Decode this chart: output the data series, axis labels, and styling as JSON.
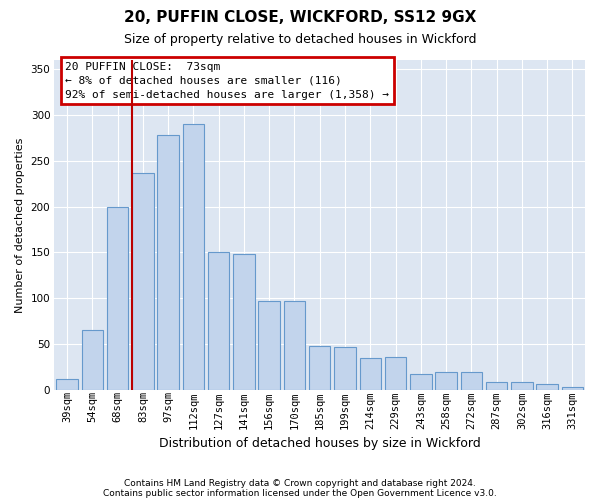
{
  "title1": "20, PUFFIN CLOSE, WICKFORD, SS12 9GX",
  "title2": "Size of property relative to detached houses in Wickford",
  "xlabel": "Distribution of detached houses by size in Wickford",
  "ylabel": "Number of detached properties",
  "categories": [
    "39sqm",
    "54sqm",
    "68sqm",
    "83sqm",
    "97sqm",
    "112sqm",
    "127sqm",
    "141sqm",
    "156sqm",
    "170sqm",
    "185sqm",
    "199sqm",
    "214sqm",
    "229sqm",
    "243sqm",
    "258sqm",
    "272sqm",
    "287sqm",
    "302sqm",
    "316sqm",
    "331sqm"
  ],
  "values": [
    12,
    65,
    200,
    237,
    278,
    290,
    150,
    148,
    97,
    97,
    48,
    47,
    35,
    36,
    17,
    19,
    19,
    9,
    9,
    6,
    3
  ],
  "bar_color": "#c2d4ec",
  "bar_edge_color": "#6699cc",
  "bg_color": "#dde6f2",
  "vline_color": "#bb0000",
  "vline_xindex": 3,
  "annotation_text": "20 PUFFIN CLOSE:  73sqm\n← 8% of detached houses are smaller (116)\n92% of semi-detached houses are larger (1,358) →",
  "ann_edge_color": "#cc0000",
  "footer1": "Contains HM Land Registry data © Crown copyright and database right 2024.",
  "footer2": "Contains public sector information licensed under the Open Government Licence v3.0.",
  "ylim": [
    0,
    360
  ],
  "yticks": [
    0,
    50,
    100,
    150,
    200,
    250,
    300,
    350
  ],
  "title1_fontsize": 11,
  "title2_fontsize": 9,
  "ylabel_fontsize": 8,
  "xlabel_fontsize": 9,
  "tick_fontsize": 7.5,
  "ann_fontsize": 8,
  "footer_fontsize": 6.5
}
